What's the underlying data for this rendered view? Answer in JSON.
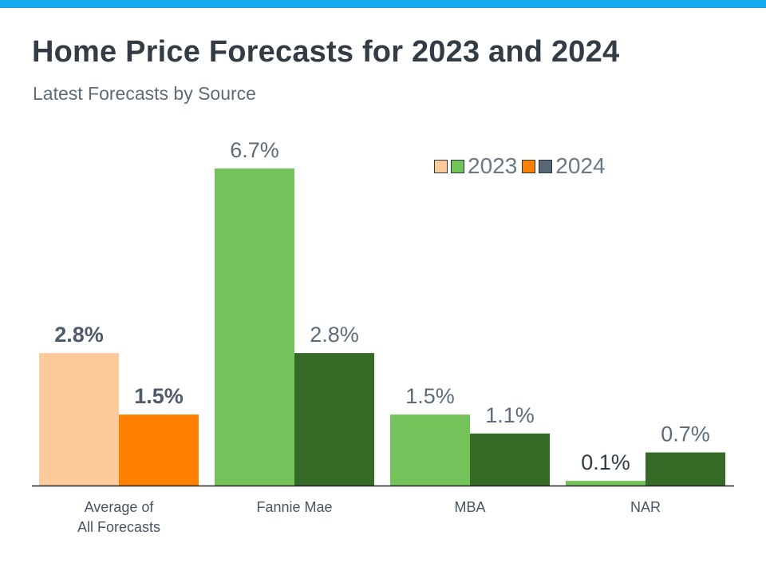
{
  "title": "Home Price Forecasts for 2023 and 2024",
  "subtitle": "Latest Forecasts by Source",
  "colors": {
    "topbar": "#14A9EC",
    "avg_2023": "#FDCB9B",
    "avg_2024": "#FF8000",
    "src_2023": "#73C35A",
    "src_2024": "#366A27"
  },
  "legend": {
    "label_2023": "2023",
    "label_2024": "2024",
    "swatches_2023": [
      "#FDCB9B",
      "#73C35A"
    ],
    "swatches_2024": [
      "#FF8000",
      "#5A6675"
    ]
  },
  "chart_data": {
    "type": "bar",
    "title": "Home Price Forecasts for 2023 and 2024",
    "subtitle": "Latest Forecasts by Source",
    "categories": [
      [
        "Average of",
        "All Forecasts"
      ],
      [
        "Fannie Mae"
      ],
      [
        "MBA"
      ],
      [
        "NAR"
      ]
    ],
    "series": [
      {
        "name": "2023",
        "values": [
          2.8,
          6.7,
          1.5,
          0.1
        ],
        "labels": [
          "2.8%",
          "6.7%",
          "1.5%",
          "0.1%"
        ]
      },
      {
        "name": "2024",
        "values": [
          1.5,
          2.8,
          1.1,
          0.7
        ],
        "labels": [
          "1.5%",
          "2.8%",
          "1.1%",
          "0.7%"
        ]
      }
    ],
    "ylim": [
      0,
      6.7
    ],
    "grid": false,
    "legend_position": "top-right"
  }
}
